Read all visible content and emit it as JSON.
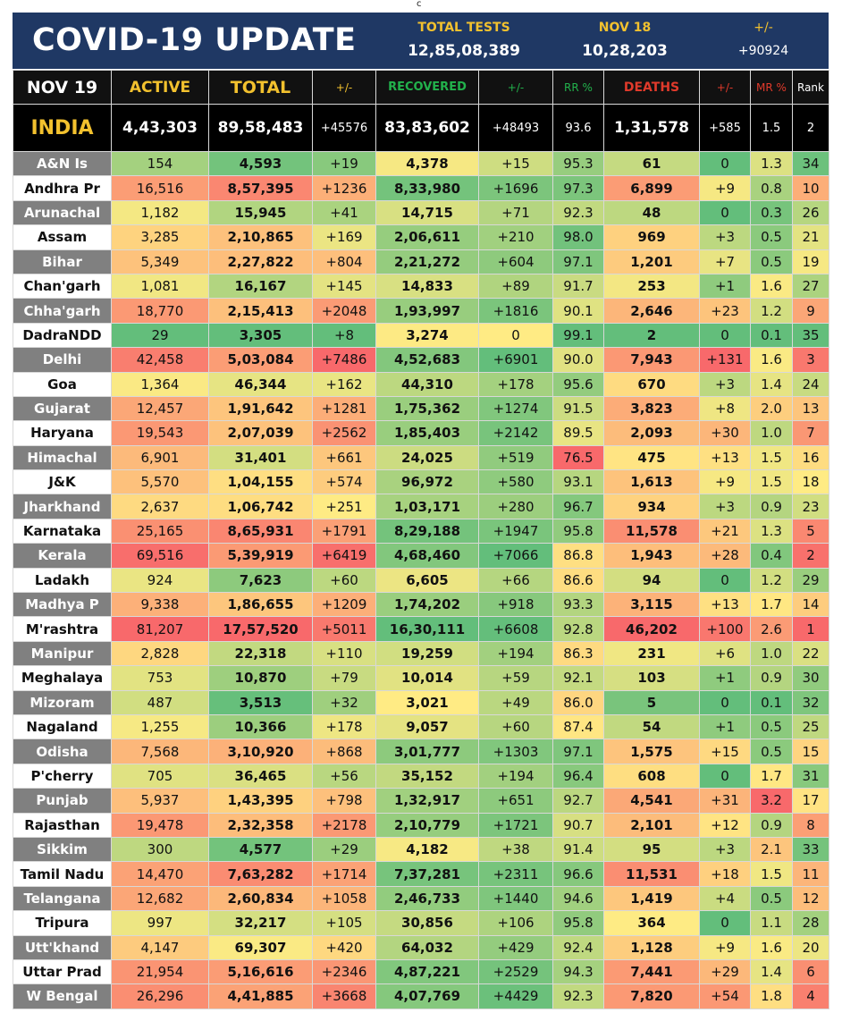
{
  "top_mark": "c",
  "header": {
    "title": "COVID-19 UPDATE",
    "total_tests_label": "TOTAL TESTS",
    "total_tests": "12,85,08,389",
    "date_label": "NOV 18",
    "date_tests": "10,28,203",
    "change_label": "+/-",
    "change_value": "+90924"
  },
  "columns": {
    "date": "NOV 19",
    "active": "ACTIVE",
    "total": "TOTAL",
    "total_change": "+/-",
    "recovered": "RECOVERED",
    "recovered_change": "+/-",
    "rr": "RR %",
    "deaths": "DEATHS",
    "deaths_change": "+/-",
    "mr": "MR %",
    "rank": "Rank"
  },
  "india": {
    "name": "INDIA",
    "active": "4,43,303",
    "total": "89,58,483",
    "total_change": "+45576",
    "recovered": "83,83,602",
    "recovered_change": "+48493",
    "rr": "93.6",
    "deaths": "1,31,578",
    "deaths_change": "+585",
    "mr": "1.5",
    "rank": "2"
  },
  "colors": {
    "header_bg": "#1f3864",
    "gold": "#f2c12e",
    "green": "#22b24c",
    "red": "#e03a2b"
  },
  "rows": [
    [
      "A&N Is",
      "154",
      "4,593",
      "+19",
      "4,378",
      "+15",
      "95.3",
      "61",
      "0",
      "1.3",
      "34"
    ],
    [
      "Andhra Pr",
      "16,516",
      "8,57,395",
      "+1236",
      "8,33,980",
      "+1696",
      "97.3",
      "6,899",
      "+9",
      "0.8",
      "10"
    ],
    [
      "Arunachal",
      "1,182",
      "15,945",
      "+41",
      "14,715",
      "+71",
      "92.3",
      "48",
      "0",
      "0.3",
      "26"
    ],
    [
      "Assam",
      "3,285",
      "2,10,865",
      "+169",
      "2,06,611",
      "+210",
      "98.0",
      "969",
      "+3",
      "0.5",
      "21"
    ],
    [
      "Bihar",
      "5,349",
      "2,27,822",
      "+804",
      "2,21,272",
      "+604",
      "97.1",
      "1,201",
      "+7",
      "0.5",
      "19"
    ],
    [
      "Chan'garh",
      "1,081",
      "16,167",
      "+145",
      "14,833",
      "+89",
      "91.7",
      "253",
      "+1",
      "1.6",
      "27"
    ],
    [
      "Chha'garh",
      "18,770",
      "2,15,413",
      "+2048",
      "1,93,997",
      "+1816",
      "90.1",
      "2,646",
      "+23",
      "1.2",
      "9"
    ],
    [
      "DadraNDD",
      "29",
      "3,305",
      "+8",
      "3,274",
      "0",
      "99.1",
      "2",
      "0",
      "0.1",
      "35"
    ],
    [
      "Delhi",
      "42,458",
      "5,03,084",
      "+7486",
      "4,52,683",
      "+6901",
      "90.0",
      "7,943",
      "+131",
      "1.6",
      "3"
    ],
    [
      "Goa",
      "1,364",
      "46,344",
      "+162",
      "44,310",
      "+178",
      "95.6",
      "670",
      "+3",
      "1.4",
      "24"
    ],
    [
      "Gujarat",
      "12,457",
      "1,91,642",
      "+1281",
      "1,75,362",
      "+1274",
      "91.5",
      "3,823",
      "+8",
      "2.0",
      "13"
    ],
    [
      "Haryana",
      "19,543",
      "2,07,039",
      "+2562",
      "1,85,403",
      "+2142",
      "89.5",
      "2,093",
      "+30",
      "1.0",
      "7"
    ],
    [
      "Himachal",
      "6,901",
      "31,401",
      "+661",
      "24,025",
      "+519",
      "76.5",
      "475",
      "+13",
      "1.5",
      "16"
    ],
    [
      "J&K",
      "5,570",
      "1,04,155",
      "+574",
      "96,972",
      "+580",
      "93.1",
      "1,613",
      "+9",
      "1.5",
      "18"
    ],
    [
      "Jharkhand",
      "2,637",
      "1,06,742",
      "+251",
      "1,03,171",
      "+280",
      "96.7",
      "934",
      "+3",
      "0.9",
      "23"
    ],
    [
      "Karnataka",
      "25,165",
      "8,65,931",
      "+1791",
      "8,29,188",
      "+1947",
      "95.8",
      "11,578",
      "+21",
      "1.3",
      "5"
    ],
    [
      "Kerala",
      "69,516",
      "5,39,919",
      "+6419",
      "4,68,460",
      "+7066",
      "86.8",
      "1,943",
      "+28",
      "0.4",
      "2"
    ],
    [
      "Ladakh",
      "924",
      "7,623",
      "+60",
      "6,605",
      "+66",
      "86.6",
      "94",
      "0",
      "1.2",
      "29"
    ],
    [
      "Madhya P",
      "9,338",
      "1,86,655",
      "+1209",
      "1,74,202",
      "+918",
      "93.3",
      "3,115",
      "+13",
      "1.7",
      "14"
    ],
    [
      "M'rashtra",
      "81,207",
      "17,57,520",
      "+5011",
      "16,30,111",
      "+6608",
      "92.8",
      "46,202",
      "+100",
      "2.6",
      "1"
    ],
    [
      "Manipur",
      "2,828",
      "22,318",
      "+110",
      "19,259",
      "+194",
      "86.3",
      "231",
      "+6",
      "1.0",
      "22"
    ],
    [
      "Meghalaya",
      "753",
      "10,870",
      "+79",
      "10,014",
      "+59",
      "92.1",
      "103",
      "+1",
      "0.9",
      "30"
    ],
    [
      "Mizoram",
      "487",
      "3,513",
      "+32",
      "3,021",
      "+49",
      "86.0",
      "5",
      "0",
      "0.1",
      "32"
    ],
    [
      "Nagaland",
      "1,255",
      "10,366",
      "+178",
      "9,057",
      "+60",
      "87.4",
      "54",
      "+1",
      "0.5",
      "25"
    ],
    [
      "Odisha",
      "7,568",
      "3,10,920",
      "+868",
      "3,01,777",
      "+1303",
      "97.1",
      "1,575",
      "+15",
      "0.5",
      "15"
    ],
    [
      "P'cherry",
      "705",
      "36,465",
      "+56",
      "35,152",
      "+194",
      "96.4",
      "608",
      "0",
      "1.7",
      "31"
    ],
    [
      "Punjab",
      "5,937",
      "1,43,395",
      "+798",
      "1,32,917",
      "+651",
      "92.7",
      "4,541",
      "+31",
      "3.2",
      "17"
    ],
    [
      "Rajasthan",
      "19,478",
      "2,32,358",
      "+2178",
      "2,10,779",
      "+1721",
      "90.7",
      "2,101",
      "+12",
      "0.9",
      "8"
    ],
    [
      "Sikkim",
      "300",
      "4,577",
      "+29",
      "4,182",
      "+38",
      "91.4",
      "95",
      "+3",
      "2.1",
      "33"
    ],
    [
      "Tamil Nadu",
      "14,470",
      "7,63,282",
      "+1714",
      "7,37,281",
      "+2311",
      "96.6",
      "11,531",
      "+18",
      "1.5",
      "11"
    ],
    [
      "Telangana",
      "12,682",
      "2,60,834",
      "+1058",
      "2,46,733",
      "+1440",
      "94.6",
      "1,419",
      "+4",
      "0.5",
      "12"
    ],
    [
      "Tripura",
      "997",
      "32,217",
      "+105",
      "30,856",
      "+106",
      "95.8",
      "364",
      "0",
      "1.1",
      "28"
    ],
    [
      "Utt'khand",
      "4,147",
      "69,307",
      "+420",
      "64,032",
      "+429",
      "92.4",
      "1,128",
      "+9",
      "1.6",
      "20"
    ],
    [
      "Uttar Prad",
      "21,954",
      "5,16,616",
      "+2346",
      "4,87,221",
      "+2529",
      "94.3",
      "7,441",
      "+29",
      "1.4",
      "6"
    ],
    [
      "W Bengal",
      "26,296",
      "4,41,885",
      "+3668",
      "4,07,769",
      "+4429",
      "92.3",
      "7,820",
      "+54",
      "1.8",
      "4"
    ]
  ]
}
